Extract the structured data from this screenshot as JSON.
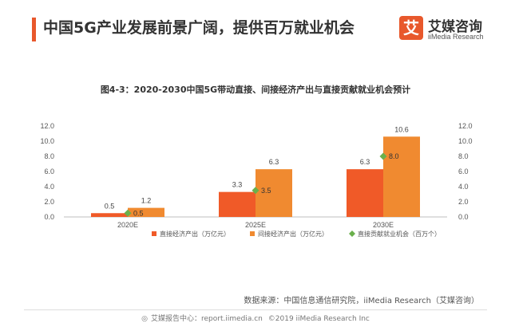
{
  "header": {
    "title": "中国5G产业发展前景广阔，提供百万就业机会",
    "accent_color": "#e8582c"
  },
  "logo": {
    "icon_glyph": "艾",
    "name_cn": "艾媒咨询",
    "name_en": "iiMedia Research",
    "color": "#e8582c"
  },
  "chart_data": {
    "type": "bar",
    "title": "图4-3：2020-2030中国5G带动直接、间接经济产出与直接贡献就业机会预计",
    "categories": [
      "2020E",
      "2025E",
      "2030E"
    ],
    "series": [
      {
        "name": "直接经济产出（万亿元）",
        "values": [
          0.5,
          3.3,
          6.3
        ],
        "color": "#f05a28",
        "kind": "bar",
        "labels": [
          "0.5",
          "3.3",
          "6.3"
        ]
      },
      {
        "name": "间接经济产出（万亿元）",
        "values": [
          1.2,
          6.3,
          10.6
        ],
        "color": "#f08a30",
        "kind": "bar",
        "labels": [
          "1.2",
          "6.3",
          "10.6"
        ]
      },
      {
        "name": "直接贡献就业机会（百万个）",
        "values": [
          0.5,
          3.5,
          8.0
        ],
        "color": "#6ab04c",
        "kind": "marker",
        "labels": [
          "0.5",
          "3.5",
          "8.0"
        ]
      }
    ],
    "ylim": [
      0,
      12
    ],
    "y_ticks": [
      "0.0",
      "2.0",
      "4.0",
      "6.0",
      "8.0",
      "10.0",
      "12.0"
    ],
    "y2_ticks": [
      "0.0",
      "2.0",
      "4.0",
      "6.0",
      "8.0",
      "10.0",
      "12.0"
    ],
    "legend_position": "bottom",
    "grid": false
  },
  "source": "数据来源：中国信息通信研究院，iiMedia Research（艾媒咨询）",
  "footer": {
    "icon_glyph": "◎",
    "left": "艾媒报告中心：report.iimedia.cn",
    "right": "©2019  iiMedia Research  Inc"
  }
}
